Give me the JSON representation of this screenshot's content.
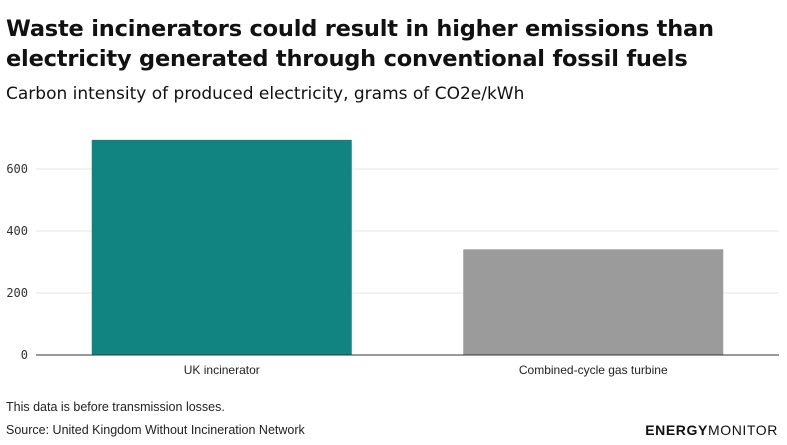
{
  "chart_data": {
    "type": "bar",
    "title": "Waste incinerators could result in higher emissions than electricity generated through conventional fossil fuels",
    "subtitle": "Carbon intensity of produced electricity, grams of CO2e/kWh",
    "categories": [
      "UK incinerator",
      "Combined-cycle gas turbine"
    ],
    "values": [
      694,
      341
    ],
    "colors": [
      "#118481",
      "#9b9b9b"
    ],
    "ylim": [
      0,
      700
    ],
    "yticks": [
      0,
      200,
      400,
      600
    ],
    "grid": true
  },
  "note": "This data is before transmission losses.",
  "source": "Source: United Kingdom Without Incineration Network",
  "brand": {
    "part1": "ENERGY",
    "part2": "MONITOR"
  }
}
